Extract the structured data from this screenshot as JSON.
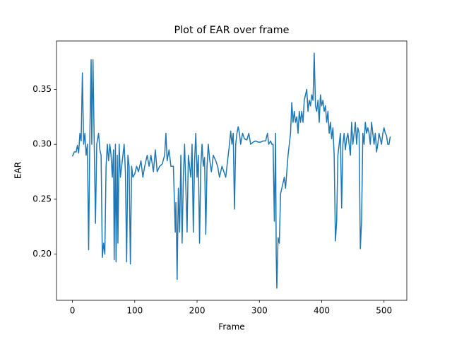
{
  "chart_data": {
    "type": "line",
    "title": "Plot of EAR over frame",
    "x_label": "Frame",
    "y_label": "EAR",
    "x": [
      0,
      3,
      6,
      8,
      10,
      12,
      14,
      16,
      18,
      20,
      22,
      24,
      26,
      28,
      30,
      31,
      33,
      35,
      37,
      39,
      42,
      44,
      46,
      48,
      50,
      52,
      54,
      56,
      58,
      60,
      62,
      64,
      66,
      67,
      69,
      70,
      72,
      73,
      75,
      77,
      79,
      81,
      83,
      85,
      87,
      89,
      91,
      93,
      95,
      97,
      100,
      103,
      106,
      110,
      113,
      116,
      120,
      123,
      126,
      130,
      133,
      136,
      140,
      144,
      148,
      150,
      152,
      155,
      158,
      162,
      165,
      166,
      167,
      168,
      170,
      172,
      174,
      176,
      178,
      180,
      182,
      184,
      186,
      188,
      190,
      192,
      194,
      196,
      198,
      200,
      202,
      204,
      206,
      208,
      210,
      212,
      214,
      216,
      218,
      220,
      223,
      226,
      230,
      233,
      236,
      240,
      243,
      246,
      249,
      252,
      254,
      256,
      258,
      260,
      262,
      264,
      266,
      268,
      270,
      273,
      276,
      280,
      283,
      286,
      290,
      294,
      298,
      302,
      306,
      310,
      313,
      315,
      318,
      320,
      322,
      324,
      326,
      327,
      328,
      330,
      332,
      334,
      336,
      338,
      340,
      342,
      344,
      346,
      348,
      350,
      352,
      354,
      356,
      358,
      360,
      362,
      364,
      366,
      368,
      370,
      372,
      374,
      376,
      378,
      380,
      382,
      384,
      386,
      388,
      390,
      392,
      394,
      396,
      398,
      400,
      402,
      404,
      406,
      408,
      410,
      412,
      414,
      416,
      418,
      420,
      422,
      424,
      426,
      428,
      430,
      432,
      434,
      436,
      438,
      440,
      442,
      444,
      446,
      448,
      450,
      452,
      454,
      456,
      458,
      460,
      462,
      464,
      466,
      468,
      470,
      472,
      474,
      476,
      478,
      480,
      482,
      484,
      486,
      488,
      490,
      492,
      494,
      496,
      498,
      500,
      502,
      504,
      506,
      508,
      510
    ],
    "series": [
      {
        "name": "EAR",
        "color": "#1f77b4",
        "values": [
          0.289,
          0.293,
          0.293,
          0.299,
          0.292,
          0.31,
          0.303,
          0.365,
          0.3,
          0.31,
          0.29,
          0.3,
          0.204,
          0.31,
          0.377,
          0.3,
          0.377,
          0.3,
          0.228,
          0.3,
          0.31,
          0.295,
          0.29,
          0.197,
          0.21,
          0.2,
          0.28,
          0.3,
          0.285,
          0.3,
          0.29,
          0.27,
          0.295,
          0.195,
          0.3,
          0.193,
          0.29,
          0.21,
          0.3,
          0.27,
          0.28,
          0.29,
          0.3,
          0.275,
          0.193,
          0.29,
          0.28,
          0.191,
          0.28,
          0.27,
          0.273,
          0.28,
          0.275,
          0.285,
          0.27,
          0.28,
          0.29,
          0.28,
          0.29,
          0.275,
          0.295,
          0.275,
          0.28,
          0.282,
          0.29,
          0.31,
          0.285,
          0.295,
          0.28,
          0.28,
          0.22,
          0.247,
          0.218,
          0.177,
          0.26,
          0.22,
          0.29,
          0.21,
          0.27,
          0.3,
          0.26,
          0.22,
          0.29,
          0.28,
          0.27,
          0.3,
          0.22,
          0.285,
          0.31,
          0.27,
          0.29,
          0.21,
          0.28,
          0.3,
          0.28,
          0.288,
          0.218,
          0.28,
          0.3,
          0.287,
          0.275,
          0.29,
          0.285,
          0.28,
          0.27,
          0.28,
          0.275,
          0.27,
          0.285,
          0.3,
          0.312,
          0.3,
          0.31,
          0.241,
          0.3,
          0.31,
          0.316,
          0.31,
          0.3,
          0.31,
          0.305,
          0.304,
          0.31,
          0.3,
          0.302,
          0.303,
          0.302,
          0.302,
          0.303,
          0.303,
          0.31,
          0.3,
          0.303,
          0.3,
          0.3,
          0.23,
          0.31,
          0.2,
          0.169,
          0.215,
          0.21,
          0.255,
          0.26,
          0.265,
          0.27,
          0.26,
          0.275,
          0.29,
          0.3,
          0.31,
          0.338,
          0.32,
          0.33,
          0.32,
          0.325,
          0.31,
          0.33,
          0.32,
          0.33,
          0.32,
          0.34,
          0.345,
          0.35,
          0.33,
          0.34,
          0.335,
          0.345,
          0.34,
          0.383,
          0.335,
          0.33,
          0.34,
          0.32,
          0.345,
          0.335,
          0.34,
          0.33,
          0.335,
          0.32,
          0.33,
          0.31,
          0.32,
          0.305,
          0.315,
          0.29,
          0.212,
          0.23,
          0.29,
          0.3,
          0.31,
          0.242,
          0.3,
          0.31,
          0.295,
          0.305,
          0.31,
          0.3,
          0.29,
          0.32,
          0.3,
          0.31,
          0.32,
          0.3,
          0.315,
          0.31,
          0.205,
          0.23,
          0.31,
          0.3,
          0.32,
          0.31,
          0.315,
          0.31,
          0.3,
          0.32,
          0.31,
          0.3,
          0.31,
          0.293,
          0.3,
          0.31,
          0.305,
          0.3,
          0.31,
          0.315,
          0.31,
          0.308,
          0.3,
          0.3,
          0.307
        ]
      }
    ],
    "xlim": [
      -25.55,
      536.55
    ],
    "xticks": [
      0,
      100,
      200,
      300,
      400,
      500
    ],
    "ylim": [
      0.158,
      0.394
    ],
    "yticks": [
      {
        "value": 0.2,
        "label": "0.20"
      },
      0.25,
      {
        "value": 0.3,
        "label": "0.30"
      },
      0.35
    ]
  }
}
